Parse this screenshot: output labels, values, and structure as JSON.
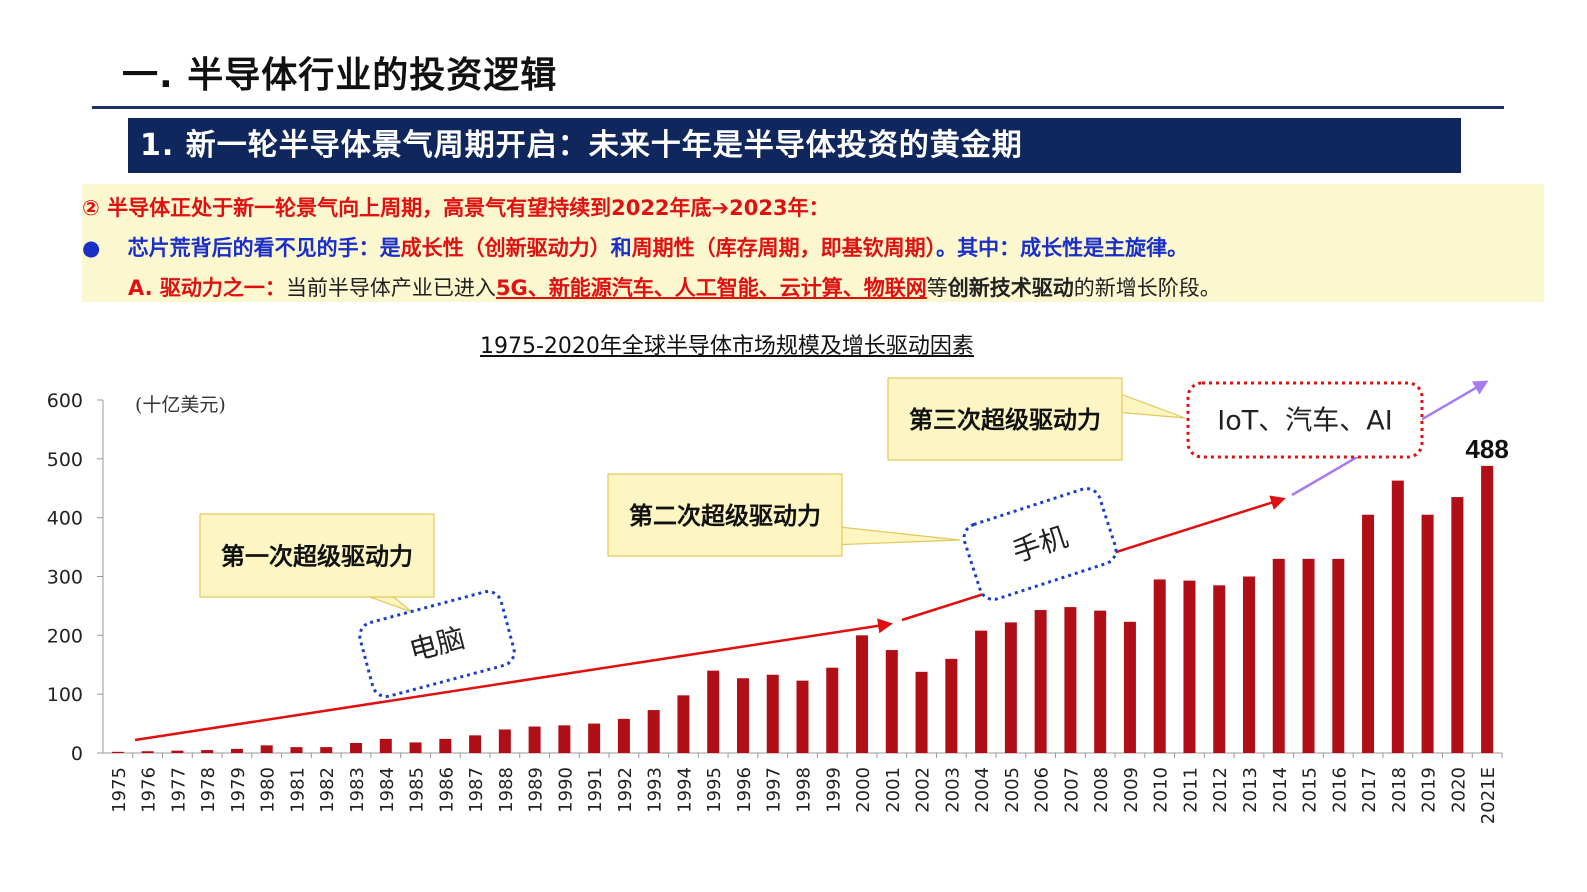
{
  "header": {
    "title": "一. 半导体行业的投资逻辑",
    "banner": "1.  新一轮半导体景气周期开启：未来十年是半导体投资的黄金期"
  },
  "notes": {
    "line1": "②  半导体正处于新一轮景气向上周期，高景气有望持续到2022年底➔2023年：",
    "line2_bullet": "●",
    "line2_a": "芯片荒背后的看不见的手：是",
    "line2_b": "成长性（创新驱动力）",
    "line2_c": "和",
    "line2_d": "周期性（库存周期，即基钦周期）",
    "line2_e": "。其中：成长性是主旋律。",
    "line3_a": "A.  驱动力之一：",
    "line3_b": "当前半导体产业已进入",
    "line3_c": "5G、新能源汽车、人工智能、云计算、物联网",
    "line3_d": "等",
    "line3_e": "创新技术驱动",
    "line3_f": "的新增长阶段。"
  },
  "chart_data": {
    "type": "bar",
    "title": "1975-2020年全球半导体市场规模及增长驱动因素",
    "ylabel": "(十亿美元)",
    "ylim": [
      0,
      600
    ],
    "yticks": [
      0,
      100,
      200,
      300,
      400,
      500,
      600
    ],
    "categories": [
      "1975",
      "1976",
      "1977",
      "1978",
      "1979",
      "1980",
      "1981",
      "1982",
      "1983",
      "1984",
      "1985",
      "1986",
      "1987",
      "1988",
      "1989",
      "1990",
      "1991",
      "1992",
      "1993",
      "1994",
      "1995",
      "1996",
      "1997",
      "1998",
      "1999",
      "2000",
      "2001",
      "2002",
      "2003",
      "2004",
      "2005",
      "2006",
      "2007",
      "2008",
      "2009",
      "2010",
      "2011",
      "2012",
      "2013",
      "2014",
      "2015",
      "2016",
      "2017",
      "2018",
      "2019",
      "2020",
      "2021E"
    ],
    "values": [
      2,
      3,
      4,
      5,
      7,
      13,
      10,
      10,
      17,
      24,
      18,
      24,
      30,
      40,
      45,
      47,
      50,
      58,
      73,
      98,
      140,
      127,
      133,
      123,
      145,
      200,
      175,
      138,
      160,
      208,
      222,
      243,
      248,
      242,
      223,
      295,
      293,
      285,
      300,
      330,
      330,
      330,
      405,
      463,
      405,
      435,
      488
    ],
    "bar_color": "#b00f17",
    "last_label": "488",
    "annotations": {
      "driver1": "第一次超级驱动力",
      "driver2": "第二次超级驱动力",
      "driver3": "第三次超级驱动力",
      "tag1": "电脑",
      "tag2": "手机",
      "tag3": "IoT、汽车、AI"
    },
    "callout_color": "#fdf6c3",
    "arrow_red": "#e01010",
    "arrow_purple": "#a77bf2",
    "tag_border_blue": "#1a3fc8",
    "tag_border_red": "#e01010"
  }
}
